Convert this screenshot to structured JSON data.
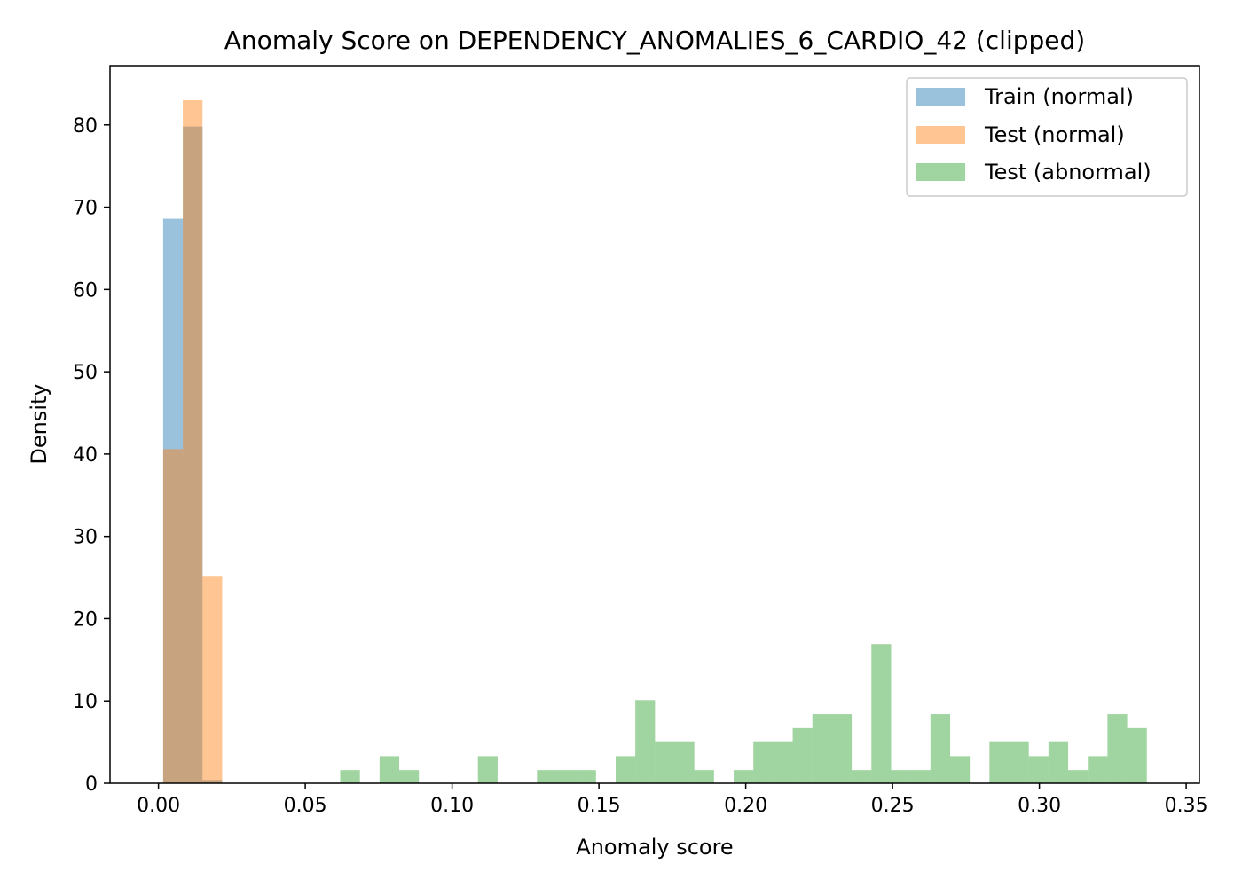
{
  "chart_data": {
    "type": "bar",
    "subtype": "histogram",
    "title": "Anomaly Score on DEPENDENCY_ANOMALIES_6_CARDIO_42 (clipped)",
    "xlabel": "Anomaly score",
    "ylabel": "Density",
    "xlim": [
      -0.0165,
      0.3545
    ],
    "ylim": [
      0,
      87.2
    ],
    "xticks": [
      0.0,
      0.05,
      0.1,
      0.15,
      0.2,
      0.25,
      0.3,
      0.35
    ],
    "xtick_labels": [
      "0.00",
      "0.05",
      "0.10",
      "0.15",
      "0.20",
      "0.25",
      "0.30",
      "0.35"
    ],
    "yticks": [
      0,
      10,
      20,
      30,
      40,
      50,
      60,
      70,
      80
    ],
    "ytick_labels": [
      "0",
      "10",
      "20",
      "30",
      "40",
      "50",
      "60",
      "70",
      "80"
    ],
    "grid": false,
    "legend_position": "top-right",
    "series": [
      {
        "name": "Train (normal)",
        "color": "#1f77b4",
        "alpha": 0.45,
        "bin_width": 0.0067,
        "bins": [
          {
            "x0": 0.0016,
            "value": 68.6
          },
          {
            "x0": 0.0083,
            "value": 79.8
          },
          {
            "x0": 0.015,
            "value": 0.4
          }
        ]
      },
      {
        "name": "Test (normal)",
        "color": "#ff7f0e",
        "alpha": 0.45,
        "bin_width": 0.0067,
        "bins": [
          {
            "x0": 0.0016,
            "value": 40.6
          },
          {
            "x0": 0.0083,
            "value": 83.0
          },
          {
            "x0": 0.015,
            "value": 25.2
          }
        ]
      },
      {
        "name": "Test (abnormal)",
        "color": "#2ca02c",
        "alpha": 0.45,
        "bin_width": 0.0067,
        "bins": [
          {
            "x0": 0.0619,
            "value": 1.6
          },
          {
            "x0": 0.0753,
            "value": 3.3
          },
          {
            "x0": 0.082,
            "value": 1.6
          },
          {
            "x0": 0.1088,
            "value": 3.3
          },
          {
            "x0": 0.1289,
            "value": 1.6
          },
          {
            "x0": 0.1356,
            "value": 1.6
          },
          {
            "x0": 0.1423,
            "value": 1.6
          },
          {
            "x0": 0.1557,
            "value": 3.3
          },
          {
            "x0": 0.1624,
            "value": 10.1
          },
          {
            "x0": 0.1691,
            "value": 5.1
          },
          {
            "x0": 0.1758,
            "value": 5.1
          },
          {
            "x0": 0.1825,
            "value": 1.6
          },
          {
            "x0": 0.1959,
            "value": 1.6
          },
          {
            "x0": 0.2026,
            "value": 5.1
          },
          {
            "x0": 0.2093,
            "value": 5.1
          },
          {
            "x0": 0.216,
            "value": 6.7
          },
          {
            "x0": 0.2227,
            "value": 8.4
          },
          {
            "x0": 0.2294,
            "value": 8.4
          },
          {
            "x0": 0.2361,
            "value": 1.6
          },
          {
            "x0": 0.2428,
            "value": 16.9
          },
          {
            "x0": 0.2495,
            "value": 1.6
          },
          {
            "x0": 0.2562,
            "value": 1.6
          },
          {
            "x0": 0.2629,
            "value": 8.4
          },
          {
            "x0": 0.2696,
            "value": 3.3
          },
          {
            "x0": 0.283,
            "value": 5.1
          },
          {
            "x0": 0.2897,
            "value": 5.1
          },
          {
            "x0": 0.2964,
            "value": 3.3
          },
          {
            "x0": 0.3031,
            "value": 5.1
          },
          {
            "x0": 0.3098,
            "value": 1.6
          },
          {
            "x0": 0.3165,
            "value": 3.3
          },
          {
            "x0": 0.3232,
            "value": 8.4
          },
          {
            "x0": 0.3299,
            "value": 6.7
          }
        ]
      }
    ]
  }
}
